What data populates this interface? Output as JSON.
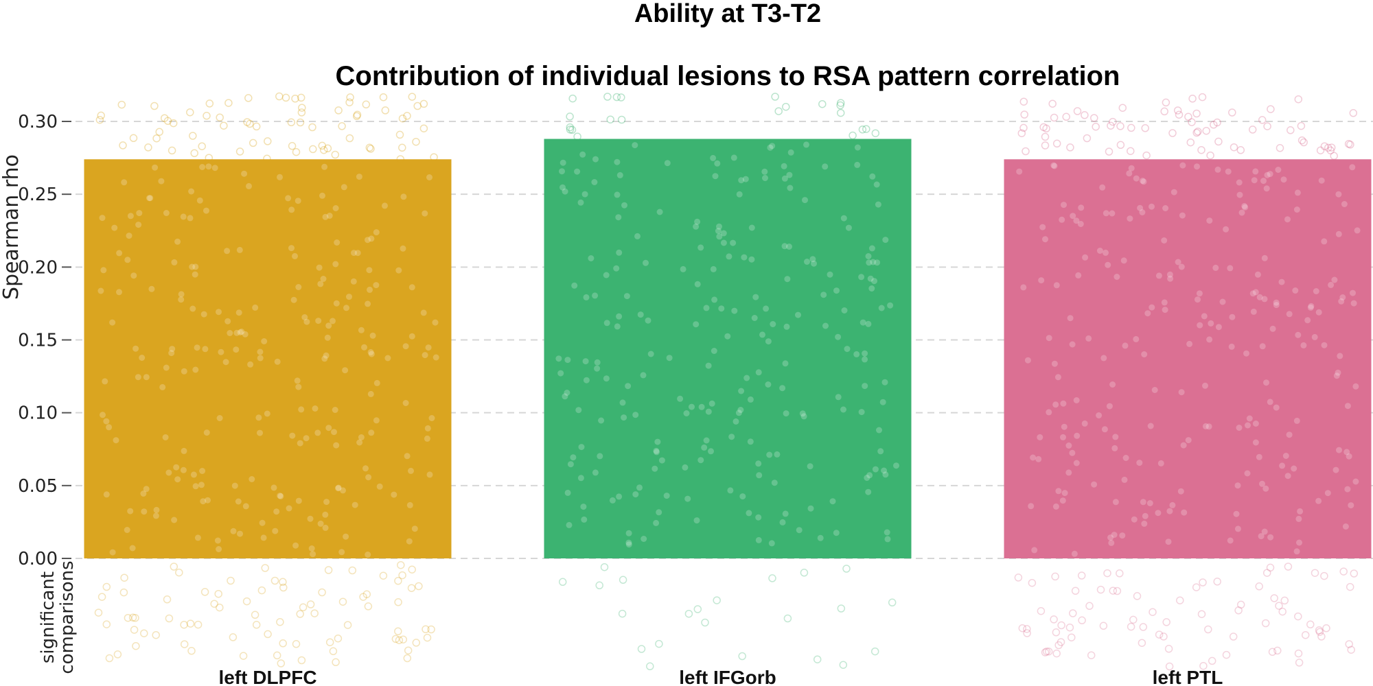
{
  "chart_data": {
    "type": "bar",
    "title": "Ability at T3-T2",
    "subtitle": "Contribution of individual lesions to RSA pattern correlation",
    "ylabel": "Spearman rho",
    "xlabel": "",
    "ylim": [
      0,
      0.3
    ],
    "yticks": [
      "0.00",
      "0.05",
      "0.10",
      "0.15",
      "0.20",
      "0.25",
      "0.30"
    ],
    "grid": true,
    "categories": [
      "left DLPFC",
      "left IFGorb",
      "left PTL"
    ],
    "values": [
      0.274,
      0.288,
      0.274
    ],
    "colors": [
      "#DAA520",
      "#3CB371",
      "#DB7093"
    ],
    "bottom_panel_label": [
      "significant",
      "comparisons"
    ]
  }
}
